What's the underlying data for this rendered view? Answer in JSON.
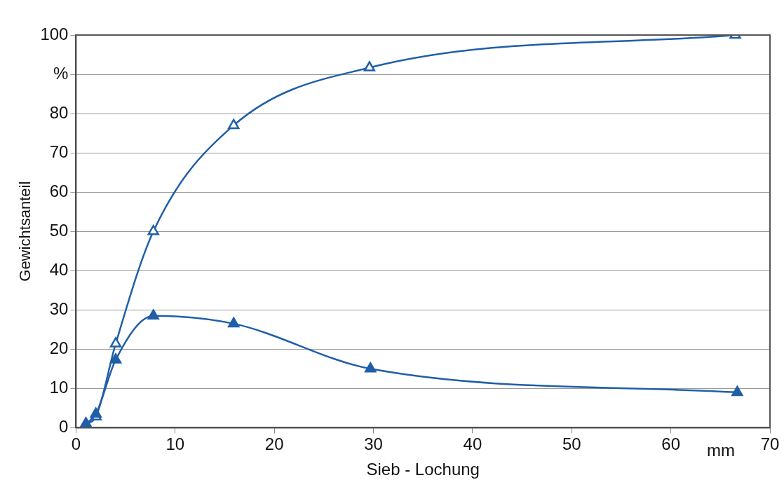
{
  "chart_data": {
    "type": "line",
    "xlabel": "Sieb - Lochung",
    "ylabel": "Gewichtsanteil",
    "annotations": [
      "mm"
    ],
    "xlim": [
      0,
      70
    ],
    "xticks": [
      0,
      10,
      20,
      30,
      40,
      50,
      60,
      70
    ],
    "ylim": [
      0,
      100
    ],
    "yticks": [
      0,
      10,
      20,
      30,
      40,
      50,
      60,
      70,
      80,
      {
        "value": 90,
        "label": "%"
      },
      100
    ],
    "grid": "y",
    "marker": "triangle",
    "line_style": "solid",
    "legend": false,
    "series": [
      {
        "color": "#1f5fa8",
        "x": [
          1,
          2,
          4,
          7.8,
          15.9,
          29.6,
          66.5
        ],
        "values": [
          1,
          2.8,
          21.4,
          50,
          77,
          91.7,
          100
        ]
      },
      {
        "color": "#1f5fa8",
        "x": [
          1,
          2,
          4,
          7.8,
          15.9,
          29.7,
          66.7
        ],
        "values": [
          1,
          3.5,
          17.3,
          28.5,
          26.5,
          15,
          9
        ]
      }
    ]
  }
}
